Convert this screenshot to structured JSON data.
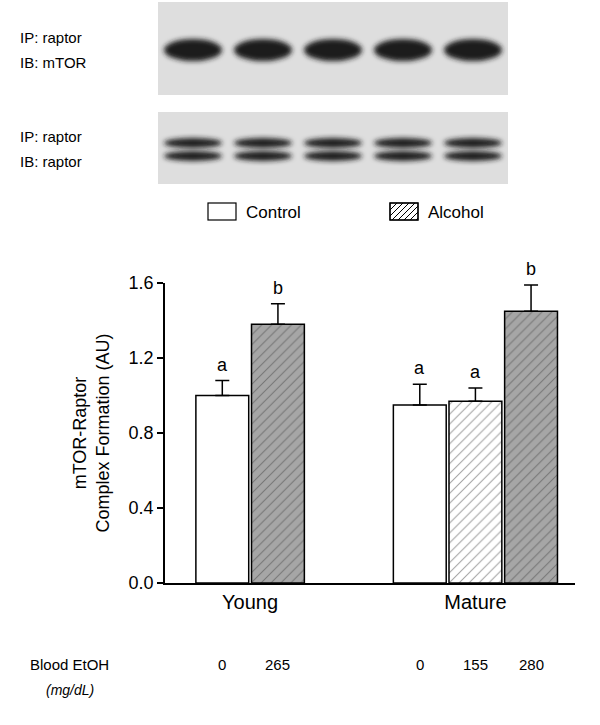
{
  "blots": [
    {
      "ip": "IP: raptor",
      "ib": "IB: mTOR"
    },
    {
      "ip": "IP: raptor",
      "ib": "IB: raptor"
    }
  ],
  "chart_data": {
    "type": "bar",
    "ylabel": [
      "mTOR-Raptor",
      "Complex Formation (AU)"
    ],
    "ylim": [
      0,
      1.6
    ],
    "yticks": [
      {
        "value": 0,
        "label": "0.0"
      },
      0.4,
      0.8,
      1.2,
      1.6
    ],
    "legend": "top",
    "series": [
      {
        "name": "Control",
        "color": "#ffffff"
      },
      {
        "name": "Alcohol",
        "color": "#ffffff",
        "marker": "hatched"
      }
    ],
    "row_label": "Blood EtOH",
    "row_unit": "(mg/dL)",
    "groups": [
      {
        "label": "Young",
        "bars": [
          {
            "series": "Control",
            "value": 1.0,
            "error": 0.08,
            "annotation": "a",
            "blood_etoh": 0
          },
          {
            "series": "Alcohol",
            "value": 1.38,
            "error": 0.11,
            "annotation": "b",
            "blood_etoh": 265,
            "color": "#a6a6a6"
          }
        ]
      },
      {
        "label": "Mature",
        "bars": [
          {
            "series": "Control",
            "value": 0.95,
            "error": 0.11,
            "annotation": "a",
            "blood_etoh": 0
          },
          {
            "series": "Alcohol",
            "value": 0.97,
            "error": 0.07,
            "annotation": "a",
            "blood_etoh": 155
          },
          {
            "series": "Alcohol",
            "value": 1.45,
            "error": 0.14,
            "annotation": "b",
            "blood_etoh": 280,
            "color": "#a6a6a6"
          }
        ]
      }
    ]
  }
}
